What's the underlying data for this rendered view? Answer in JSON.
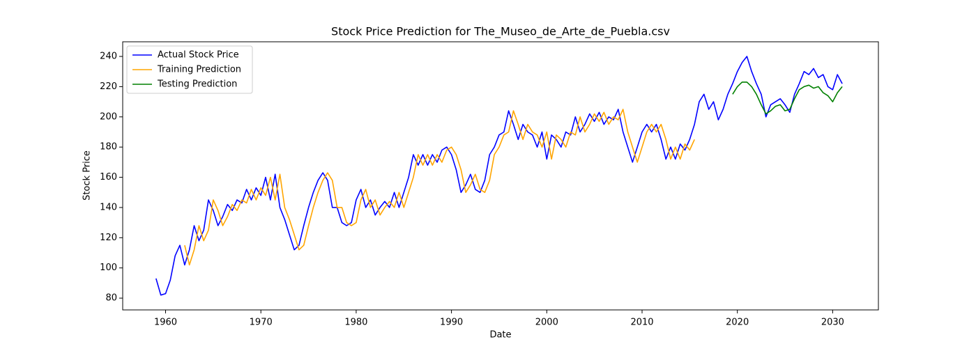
{
  "chart_data": {
    "type": "line",
    "title": "Stock Price Prediction for The_Museo_de_Arte_de_Puebla.csv",
    "x_label": "Date",
    "y_label": "Stock Price",
    "xlim": [
      1955.5,
      2034.8
    ],
    "ylim": [
      72.2,
      249.7
    ],
    "xticks": [
      1960,
      1970,
      1980,
      1990,
      2000,
      2010,
      2020,
      2030
    ],
    "yticks": [
      80,
      100,
      120,
      140,
      160,
      180,
      200,
      220,
      240
    ],
    "grid": false,
    "legend": "upper left",
    "x": [
      1959,
      1959.5,
      1960,
      1960.5,
      1961,
      1961.5,
      1962,
      1962.5,
      1963,
      1963.5,
      1964,
      1964.5,
      1965,
      1965.5,
      1966,
      1966.5,
      1967,
      1967.5,
      1968,
      1968.5,
      1969,
      1969.5,
      1970,
      1970.5,
      1971,
      1971.5,
      1972,
      1972.5,
      1973,
      1973.5,
      1974,
      1974.5,
      1975,
      1975.5,
      1976,
      1976.5,
      1977,
      1977.5,
      1978,
      1978.5,
      1979,
      1979.5,
      1980,
      1980.5,
      1981,
      1981.5,
      1982,
      1982.5,
      1983,
      1983.5,
      1984,
      1984.5,
      1985,
      1985.5,
      1986,
      1986.5,
      1987,
      1987.5,
      1988,
      1988.5,
      1989,
      1989.5,
      1990,
      1990.5,
      1991,
      1991.5,
      1992,
      1992.5,
      1993,
      1993.5,
      1994,
      1994.5,
      1995,
      1995.5,
      1996,
      1996.5,
      1997,
      1997.5,
      1998,
      1998.5,
      1999,
      1999.5,
      2000,
      2000.5,
      2001,
      2001.5,
      2002,
      2002.5,
      2003,
      2003.5,
      2004,
      2004.5,
      2005,
      2005.5,
      2006,
      2006.5,
      2007,
      2007.5,
      2008,
      2008.5,
      2009,
      2009.5,
      2010,
      2010.5,
      2011,
      2011.5,
      2012,
      2012.5,
      2013,
      2013.5,
      2014,
      2014.5,
      2015,
      2015.5,
      2016,
      2016.5,
      2017,
      2017.5,
      2018,
      2018.5,
      2019,
      2019.5,
      2020,
      2020.5,
      2021,
      2021.5,
      2022,
      2022.5,
      2023,
      2023.5,
      2024,
      2024.5,
      2025,
      2025.5,
      2026,
      2026.5,
      2027,
      2027.5,
      2028,
      2028.5,
      2029,
      2029.5,
      2030,
      2030.5,
      2031
    ],
    "series": [
      {
        "name": "Actual Stock Price",
        "color": "blue",
        "values": [
          93,
          82,
          83,
          92,
          108,
          115,
          102,
          112,
          128,
          118,
          125,
          145,
          138,
          128,
          134,
          142,
          138,
          145,
          143,
          152,
          145,
          153,
          148,
          160,
          145,
          162,
          140,
          132,
          122,
          112,
          115,
          128,
          140,
          150,
          158,
          163,
          158,
          140,
          140,
          130,
          128,
          130,
          145,
          152,
          140,
          145,
          135,
          140,
          144,
          140,
          150,
          140,
          150,
          160,
          175,
          168,
          175,
          168,
          175,
          170,
          178,
          180,
          175,
          165,
          150,
          155,
          162,
          152,
          150,
          158,
          175,
          180,
          188,
          190,
          204,
          195,
          185,
          195,
          190,
          188,
          180,
          190,
          172,
          188,
          185,
          180,
          190,
          188,
          200,
          190,
          195,
          202,
          197,
          203,
          195,
          200,
          198,
          205,
          190,
          180,
          170,
          180,
          190,
          195,
          190,
          195,
          185,
          172,
          180,
          172,
          182,
          178,
          185,
          195,
          210,
          215,
          205,
          210,
          198,
          205,
          215,
          222,
          230,
          236,
          240,
          230,
          222,
          215,
          200,
          208,
          210,
          212,
          208,
          203,
          215,
          222,
          230,
          228,
          232,
          226,
          228,
          220,
          218,
          228,
          222
        ]
      },
      {
        "name": "Training Prediction",
        "color": "orange",
        "values": [
          null,
          null,
          null,
          null,
          null,
          null,
          115,
          102,
          112,
          128,
          118,
          125,
          145,
          138,
          128,
          134,
          142,
          138,
          145,
          143,
          152,
          145,
          153,
          148,
          160,
          145,
          162,
          140,
          132,
          122,
          112,
          115,
          128,
          140,
          150,
          158,
          163,
          158,
          140,
          140,
          130,
          128,
          130,
          145,
          152,
          140,
          145,
          135,
          140,
          144,
          140,
          150,
          140,
          150,
          160,
          175,
          168,
          175,
          168,
          175,
          170,
          178,
          180,
          175,
          165,
          150,
          155,
          162,
          152,
          150,
          158,
          175,
          180,
          188,
          190,
          204,
          195,
          185,
          195,
          190,
          188,
          180,
          190,
          172,
          188,
          185,
          180,
          190,
          188,
          200,
          190,
          195,
          202,
          197,
          203,
          195,
          200,
          198,
          205,
          190,
          180,
          170,
          180,
          190,
          195,
          190,
          195,
          185,
          172,
          180,
          172,
          182,
          178,
          185,
          null,
          null,
          null,
          null,
          null,
          null,
          null,
          null,
          null,
          null,
          null,
          null,
          null,
          null,
          null,
          null,
          null,
          null,
          null,
          null,
          null,
          null,
          null,
          null,
          null,
          null,
          null,
          null,
          null,
          null,
          null
        ]
      },
      {
        "name": "Testing Prediction",
        "color": "green",
        "values": [
          null,
          null,
          null,
          null,
          null,
          null,
          null,
          null,
          null,
          null,
          null,
          null,
          null,
          null,
          null,
          null,
          null,
          null,
          null,
          null,
          null,
          null,
          null,
          null,
          null,
          null,
          null,
          null,
          null,
          null,
          null,
          null,
          null,
          null,
          null,
          null,
          null,
          null,
          null,
          null,
          null,
          null,
          null,
          null,
          null,
          null,
          null,
          null,
          null,
          null,
          null,
          null,
          null,
          null,
          null,
          null,
          null,
          null,
          null,
          null,
          null,
          null,
          null,
          null,
          null,
          null,
          null,
          null,
          null,
          null,
          null,
          null,
          null,
          null,
          null,
          null,
          null,
          null,
          null,
          null,
          null,
          null,
          null,
          null,
          null,
          null,
          null,
          null,
          null,
          null,
          null,
          null,
          null,
          null,
          null,
          null,
          null,
          null,
          null,
          null,
          null,
          null,
          null,
          null,
          null,
          null,
          null,
          null,
          null,
          null,
          null,
          null,
          null,
          null,
          null,
          null,
          null,
          null,
          null,
          null,
          null,
          215,
          220,
          223,
          223,
          220,
          215,
          208,
          202,
          204,
          207,
          208,
          204,
          205,
          212,
          218,
          220,
          221,
          219,
          220,
          216,
          214,
          210,
          216,
          220
        ]
      }
    ]
  }
}
